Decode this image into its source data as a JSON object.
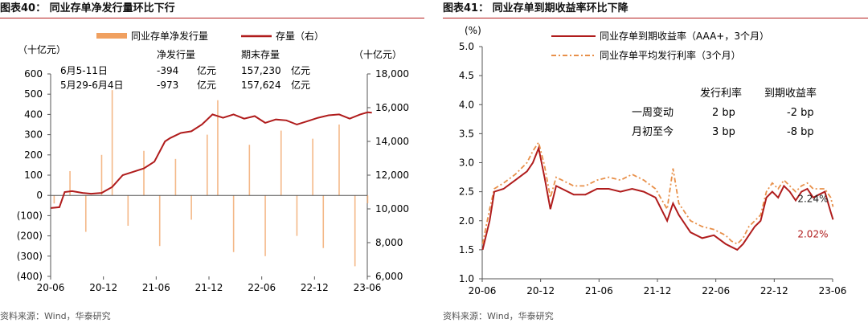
{
  "charts": {
    "left": {
      "figure_title": "图表40：  同业存单净发行量环比下行",
      "source": "资料来源：Wind，华泰研究"
    },
    "right": {
      "figure_title": "图表41：  同业存单到期收益率环比下降",
      "source": "资料来源：Wind，华泰研究"
    }
  },
  "chart_data": [
    {
      "type": "bar",
      "y_unit_left": "（十亿元）",
      "y_unit_right": "（十亿元）",
      "x_ticks": [
        "20-06",
        "20-12",
        "21-06",
        "21-12",
        "22-06",
        "22-12",
        "23-06"
      ],
      "ylim": [
        -400,
        600
      ],
      "yticks": [
        "600",
        "500",
        "400",
        "300",
        "200",
        "100",
        "0",
        "(100)",
        "(200)",
        "(300)",
        "(400)"
      ],
      "y2lim": [
        6000,
        18000
      ],
      "y2ticks": [
        "18,000",
        "16,000",
        "14,000",
        "12,000",
        "10,000",
        "8,000",
        "6,000"
      ],
      "legend": {
        "bar": "同业存单净发行量",
        "line": "存量（右）",
        "placement": "top"
      },
      "colors": {
        "bar": "#f0a060",
        "line": "#b01c1c"
      },
      "table": {
        "headers": [
          "",
          "净发行量",
          "",
          "期末存量",
          ""
        ],
        "rows": [
          [
            "6月5-11日",
            "-394",
            "亿元",
            "157,230",
            "亿元"
          ],
          [
            "5月29-6月4日",
            "-973",
            "亿元",
            "157,624",
            "亿元"
          ]
        ]
      },
      "series": [
        {
          "name": "同业存单净发行量",
          "kind": "bar",
          "axis": "left",
          "x": [
            2020.45,
            2020.6,
            2020.75,
            2020.9,
            2021.0,
            2021.15,
            2021.3,
            2021.45,
            2021.6,
            2021.75,
            2021.9,
            2022.0,
            2022.15,
            2022.3,
            2022.45,
            2022.6,
            2022.75,
            2022.9,
            2023.0,
            2023.15,
            2023.3,
            2023.42
          ],
          "values": [
            -40,
            120,
            -180,
            200,
            520,
            -150,
            220,
            -250,
            180,
            -120,
            300,
            470,
            -280,
            250,
            -300,
            320,
            -200,
            280,
            -260,
            350,
            -350,
            -39
          ]
        },
        {
          "name": "存量（右）",
          "kind": "line",
          "axis": "right",
          "x": [
            2020.42,
            2020.5,
            2020.55,
            2020.62,
            2020.72,
            2020.8,
            2020.9,
            2021.0,
            2021.1,
            2021.2,
            2021.3,
            2021.4,
            2021.5,
            2021.55,
            2021.65,
            2021.75,
            2021.85,
            2021.95,
            2022.05,
            2022.15,
            2022.25,
            2022.35,
            2022.45,
            2022.55,
            2022.65,
            2022.75,
            2022.85,
            2022.95,
            2023.05,
            2023.15,
            2023.25,
            2023.35,
            2023.42,
            2023.46
          ],
          "values": [
            10050,
            10100,
            11000,
            11050,
            10950,
            10900,
            10950,
            11300,
            12000,
            12200,
            12400,
            12800,
            14000,
            14200,
            14500,
            14600,
            15000,
            15600,
            15400,
            15600,
            15350,
            15500,
            15100,
            15300,
            15250,
            15000,
            15200,
            15400,
            15550,
            15600,
            15350,
            15600,
            15723,
            15700
          ]
        }
      ]
    },
    {
      "type": "line",
      "y_unit": "(%)",
      "x_ticks": [
        "20-06",
        "20-12",
        "21-06",
        "21-12",
        "22-06",
        "22-12",
        "23-06"
      ],
      "ylim": [
        1.0,
        5.0
      ],
      "yticks": [
        "5.0",
        "4.5",
        "4.0",
        "3.5",
        "3.0",
        "2.5",
        "2.0",
        "1.5",
        "1.0"
      ],
      "legend": {
        "placement": "top"
      },
      "colors": {
        "maturity": "#b01c1c",
        "issue": "#e8904a"
      },
      "table": {
        "headers": [
          "",
          "发行利率",
          "到期收益率"
        ],
        "rows": [
          [
            "一周变动",
            "2   bp",
            "-2   bp"
          ],
          [
            "月初至今",
            "3   bp",
            "-8   bp"
          ]
        ]
      },
      "annotations": [
        {
          "text": "2.24%",
          "color": "#222222",
          "x": 2023.42,
          "y": 2.24
        },
        {
          "text": "2.02%",
          "color": "#b01c1c",
          "x": 2023.42,
          "y": 2.02
        }
      ],
      "series": [
        {
          "name": "同业存单到期收益率（AAA+，3个月）",
          "kind": "line",
          "x": [
            2020.42,
            2020.48,
            2020.52,
            2020.6,
            2020.7,
            2020.8,
            2020.85,
            2020.9,
            2020.95,
            2021.0,
            2021.05,
            2021.1,
            2021.2,
            2021.3,
            2021.4,
            2021.5,
            2021.6,
            2021.7,
            2021.8,
            2021.9,
            2022.0,
            2022.05,
            2022.1,
            2022.2,
            2022.3,
            2022.4,
            2022.5,
            2022.55,
            2022.6,
            2022.65,
            2022.7,
            2022.75,
            2022.8,
            2022.85,
            2022.9,
            2022.95,
            2023.0,
            2023.05,
            2023.1,
            2023.15,
            2023.2,
            2023.25,
            2023.3,
            2023.35,
            2023.4,
            2023.42
          ],
          "values": [
            1.5,
            2.0,
            2.5,
            2.55,
            2.7,
            2.85,
            3.0,
            3.25,
            2.75,
            2.2,
            2.6,
            2.55,
            2.45,
            2.45,
            2.55,
            2.55,
            2.5,
            2.55,
            2.5,
            2.4,
            2.0,
            2.3,
            2.1,
            1.8,
            1.7,
            1.75,
            1.6,
            1.55,
            1.5,
            1.6,
            1.75,
            1.9,
            2.0,
            2.4,
            2.5,
            2.4,
            2.6,
            2.5,
            2.35,
            2.5,
            2.55,
            2.4,
            2.45,
            2.5,
            2.15,
            2.02
          ]
        },
        {
          "name": "同业存单平均发行利率（3个月）",
          "kind": "line",
          "x": [
            2020.42,
            2020.48,
            2020.52,
            2020.6,
            2020.7,
            2020.8,
            2020.85,
            2020.9,
            2020.95,
            2021.0,
            2021.05,
            2021.1,
            2021.2,
            2021.3,
            2021.4,
            2021.5,
            2021.6,
            2021.7,
            2021.8,
            2021.9,
            2022.0,
            2022.05,
            2022.1,
            2022.2,
            2022.3,
            2022.4,
            2022.5,
            2022.55,
            2022.6,
            2022.65,
            2022.7,
            2022.75,
            2022.8,
            2022.85,
            2022.9,
            2022.95,
            2023.0,
            2023.05,
            2023.1,
            2023.15,
            2023.2,
            2023.25,
            2023.3,
            2023.35,
            2023.4,
            2023.42
          ],
          "values": [
            1.6,
            2.2,
            2.55,
            2.65,
            2.8,
            3.0,
            3.2,
            3.35,
            2.95,
            2.4,
            2.75,
            2.7,
            2.6,
            2.6,
            2.7,
            2.75,
            2.7,
            2.8,
            2.7,
            2.55,
            2.2,
            2.9,
            2.3,
            2.0,
            1.9,
            1.85,
            1.75,
            1.65,
            1.6,
            1.7,
            1.9,
            2.0,
            2.1,
            2.5,
            2.65,
            2.55,
            2.7,
            2.6,
            2.5,
            2.6,
            2.65,
            2.55,
            2.55,
            2.55,
            2.4,
            2.24
          ]
        }
      ]
    }
  ]
}
